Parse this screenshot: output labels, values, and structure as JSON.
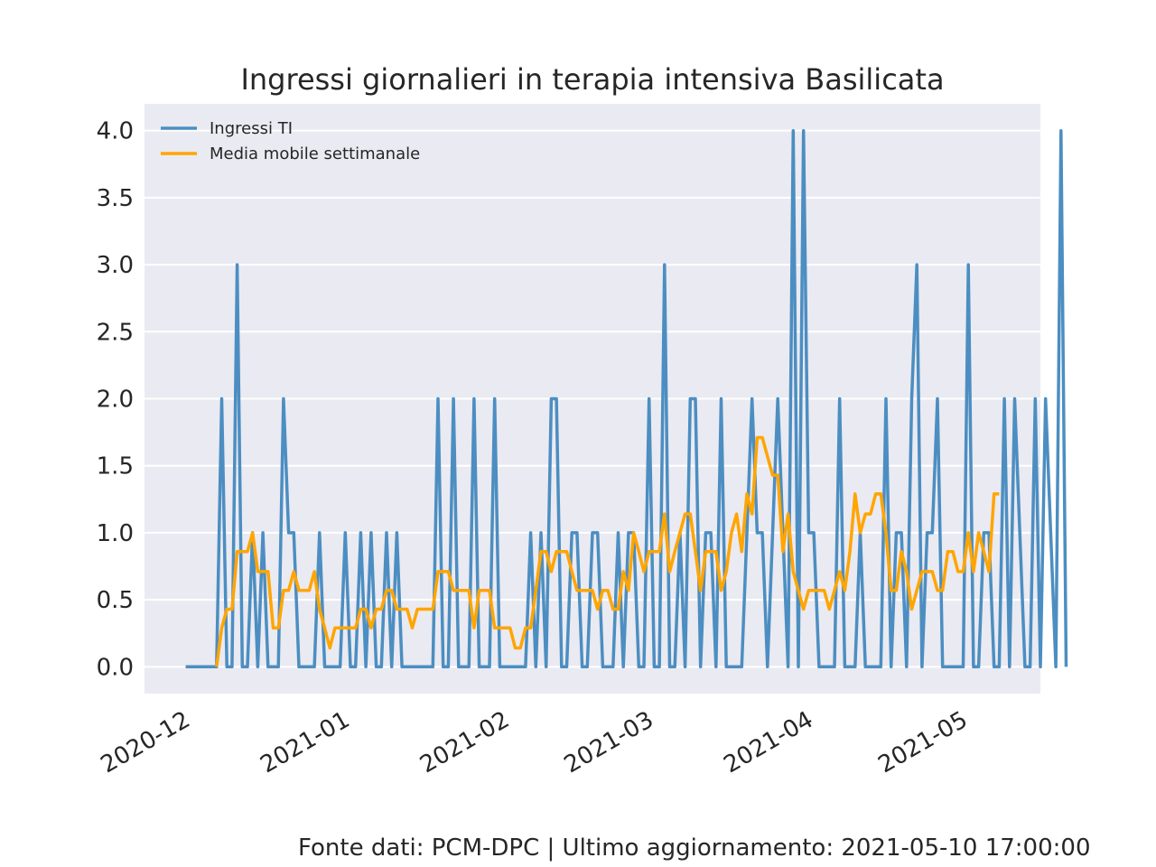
{
  "footer": "Fonte dati: PCM-DPC | Ultimo aggiornamento: 2021-05-10 17:00:00",
  "chart_data": {
    "type": "line",
    "title": "Ingressi giornalieri in terapia intensiva Basilicata",
    "xlabel": "",
    "ylabel": "",
    "x_start": "2020-12-03",
    "x_end": "2021-05-10",
    "xlim": [
      "2020-11-25",
      "2021-05-18"
    ],
    "ylim": [
      -0.2,
      4.2
    ],
    "x_ticks": [
      "2020-12",
      "2021-01",
      "2021-02",
      "2021-03",
      "2021-04",
      "2021-05"
    ],
    "x_tick_dates": [
      "2020-12-01",
      "2021-01-01",
      "2021-02-01",
      "2021-03-01",
      "2021-04-01",
      "2021-05-01"
    ],
    "y_ticks": [
      "0.0",
      "0.5",
      "1.0",
      "1.5",
      "2.0",
      "2.5",
      "3.0",
      "3.5",
      "4.0"
    ],
    "y_tick_values": [
      0,
      0.5,
      1,
      1.5,
      2,
      2.5,
      3,
      3.5,
      4
    ],
    "grid": true,
    "legend_position": "top-left",
    "series": [
      {
        "name": "Ingressi TI",
        "color": "#4c8ec1",
        "values": [
          0,
          0,
          0,
          0,
          0,
          0,
          0,
          2,
          0,
          0,
          3,
          0,
          0,
          1,
          0,
          1,
          0,
          0,
          0,
          2,
          1,
          1,
          0,
          0,
          0,
          0,
          1,
          0,
          0,
          0,
          0,
          1,
          0,
          0,
          1,
          0,
          1,
          0,
          0,
          1,
          0,
          1,
          0,
          0,
          0,
          0,
          0,
          0,
          0,
          2,
          0,
          0,
          2,
          0,
          0,
          0,
          2,
          0,
          0,
          0,
          2,
          0,
          0,
          0,
          0,
          0,
          0,
          1,
          0,
          1,
          0,
          2,
          2,
          0,
          0,
          1,
          1,
          0,
          0,
          1,
          1,
          0,
          0,
          0,
          1,
          0,
          1,
          1,
          0,
          0,
          2,
          0,
          0,
          3,
          0,
          0,
          1,
          0,
          2,
          2,
          0,
          1,
          1,
          0,
          2,
          0,
          0,
          0,
          0,
          1,
          2,
          1,
          1,
          0,
          1,
          2,
          1,
          0,
          4,
          0,
          4,
          1,
          1,
          0,
          0,
          0,
          0,
          2,
          0,
          0,
          0,
          1,
          0,
          0,
          0,
          0,
          2,
          0,
          1,
          1,
          0,
          2,
          3,
          0,
          1,
          1,
          2,
          0,
          0,
          0,
          0,
          0,
          3,
          0,
          0,
          1,
          1,
          0,
          0,
          2,
          0,
          2,
          1,
          0,
          0,
          2,
          0,
          2,
          1,
          0,
          4,
          0
        ]
      },
      {
        "name": "Media mobile settimanale",
        "color": "#ffa500",
        "start_date": "2020-12-09",
        "values": [
          0,
          0.29,
          0.43,
          0.43,
          0.86,
          0.86,
          0.86,
          1.0,
          0.71,
          0.71,
          0.71,
          0.29,
          0.29,
          0.57,
          0.57,
          0.71,
          0.57,
          0.57,
          0.57,
          0.71,
          0.43,
          0.29,
          0.14,
          0.29,
          0.29,
          0.29,
          0.29,
          0.29,
          0.43,
          0.43,
          0.29,
          0.43,
          0.43,
          0.57,
          0.57,
          0.43,
          0.43,
          0.43,
          0.29,
          0.43,
          0.43,
          0.43,
          0.43,
          0.71,
          0.71,
          0.71,
          0.57,
          0.57,
          0.57,
          0.57,
          0.29,
          0.57,
          0.57,
          0.57,
          0.29,
          0.29,
          0.29,
          0.29,
          0.14,
          0.14,
          0.29,
          0.29,
          0.57,
          0.86,
          0.86,
          0.71,
          0.86,
          0.86,
          0.86,
          0.71,
          0.57,
          0.57,
          0.57,
          0.57,
          0.43,
          0.57,
          0.57,
          0.43,
          0.43,
          0.71,
          0.57,
          1.0,
          0.86,
          0.71,
          0.86,
          0.86,
          0.86,
          1.14,
          0.71,
          0.86,
          1.0,
          1.14,
          1.14,
          0.86,
          0.57,
          0.86,
          0.86,
          0.86,
          0.57,
          0.71,
          1.0,
          1.14,
          0.86,
          1.29,
          1.14,
          1.71,
          1.71,
          1.57,
          1.43,
          1.43,
          0.86,
          1.14,
          0.71,
          0.57,
          0.43,
          0.57,
          0.57,
          0.57,
          0.57,
          0.43,
          0.57,
          0.71,
          0.57,
          0.86,
          1.29,
          1.0,
          1.14,
          1.14,
          1.29,
          1.29,
          1.0,
          0.57,
          0.57,
          0.86,
          0.71,
          0.43,
          0.57,
          0.71,
          0.71,
          0.71,
          0.57,
          0.57,
          0.86,
          0.86,
          0.71,
          0.71,
          1.0,
          0.71,
          1.0,
          0.86,
          0.71,
          1.29,
          1.29
        ]
      }
    ]
  }
}
